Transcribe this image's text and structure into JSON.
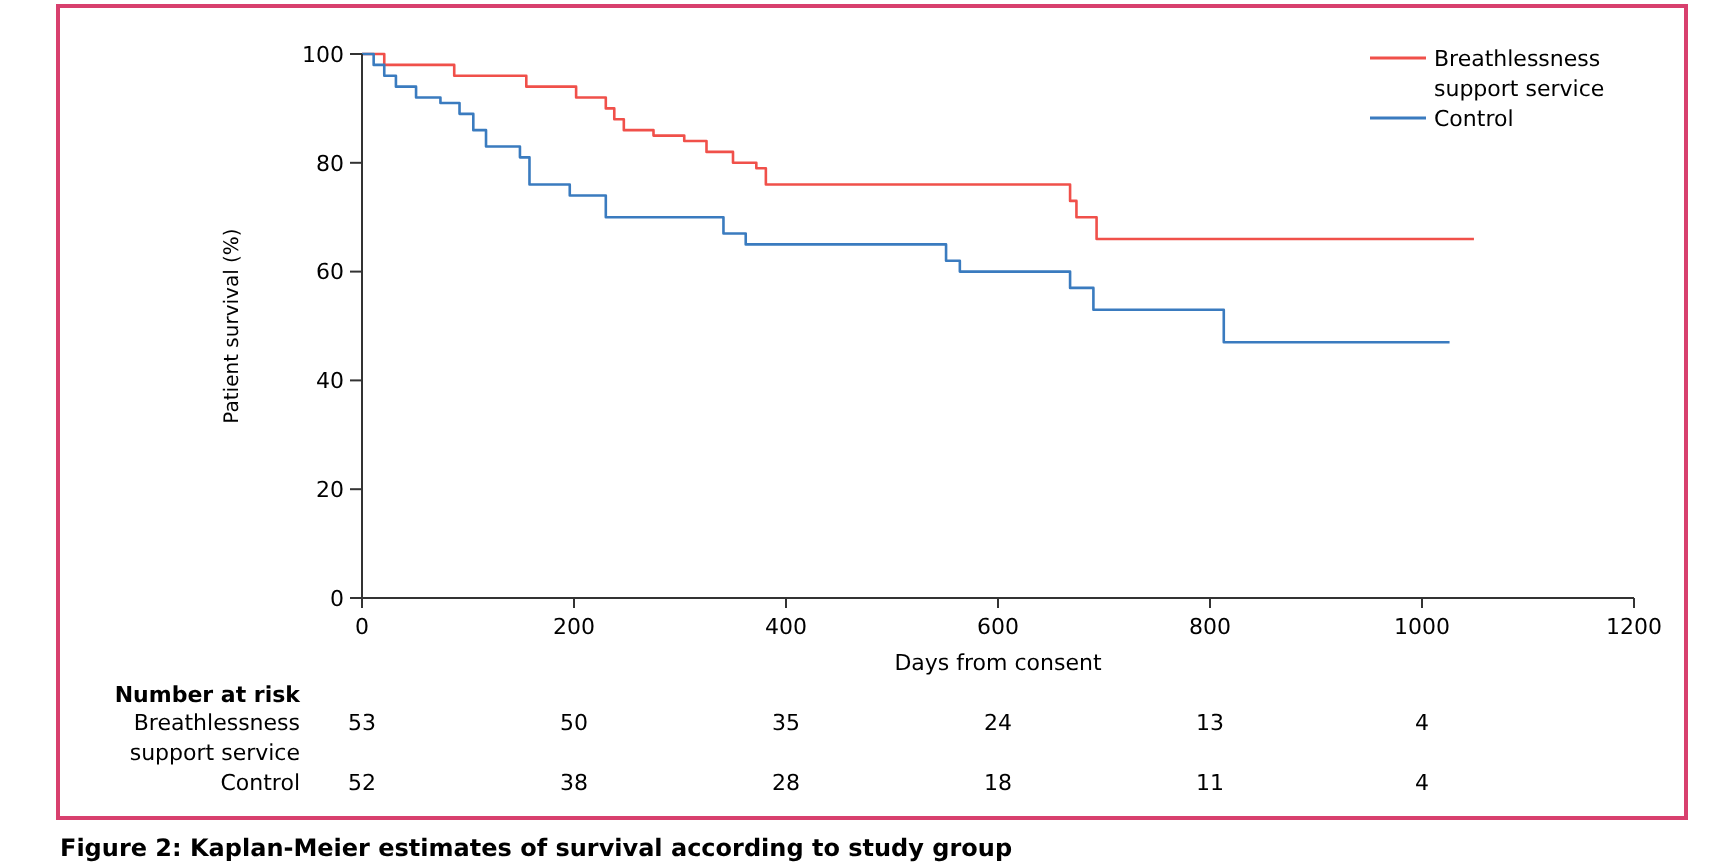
{
  "chart_data": {
    "type": "step",
    "title": "Figure 2: Kaplan-Meier estimates of survival according to study group",
    "xlabel": "Days from consent",
    "ylabel": "Patient survival (%)",
    "xlim": [
      0,
      1200
    ],
    "xticks": [
      0,
      200,
      400,
      600,
      800,
      1000,
      1200
    ],
    "ylim": [
      0,
      100
    ],
    "yticks": [
      0,
      20,
      40,
      60,
      80,
      100
    ],
    "grid": false,
    "legend": "top right",
    "line_style": "solid",
    "series": [
      {
        "name": "Breathlessness support service",
        "color": "#f0504a",
        "x": [
          0,
          21,
          87,
          155,
          202,
          230,
          238,
          247,
          275,
          304,
          325,
          350,
          372,
          381,
          668,
          674,
          693,
          1049
        ],
        "values": [
          100,
          98,
          96,
          94,
          92,
          90,
          88,
          86,
          85,
          84,
          82,
          80,
          79,
          76,
          73,
          70,
          66,
          66
        ]
      },
      {
        "name": "Control",
        "color": "#3a7bbf",
        "x": [
          0,
          11,
          21,
          32,
          51,
          74,
          92,
          105,
          117,
          149,
          158,
          196,
          230,
          341,
          362,
          551,
          564,
          668,
          690,
          813,
          1026
        ],
        "values": [
          100,
          98,
          96,
          94,
          92,
          91,
          89,
          86,
          83,
          81,
          76,
          74,
          70,
          67,
          65,
          62,
          60,
          57,
          53,
          47,
          47
        ]
      }
    ],
    "annotations": [
      "Number at risk",
      "Breathlessness support service",
      "53",
      "50",
      "35",
      "24",
      "13",
      "4",
      "Control",
      "52",
      "38",
      "28",
      "18",
      "11",
      "4"
    ]
  }
}
